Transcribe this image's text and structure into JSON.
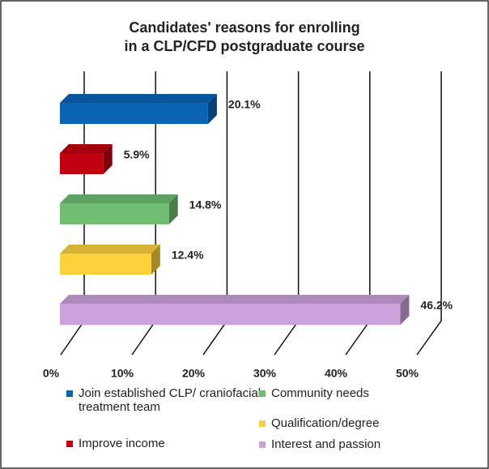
{
  "chart_data": {
    "type": "bar3d",
    "title": [
      "Candidates' reasons for enrolling",
      "in a CLP/CFD postgraduate course"
    ],
    "categories": [
      "Join established CLP/ craniofacial treatment team",
      "Improve income",
      "Community needs",
      "Qualification/degree",
      "Interest and passion"
    ],
    "values": [
      20.1,
      5.9,
      14.8,
      12.4,
      46.2
    ],
    "value_labels": [
      "20.1%",
      "5.9%",
      "14.8%",
      "12.4%",
      "46.2%"
    ],
    "colors": [
      "#0a64b4",
      "#c0000e",
      "#70bd73",
      "#fdd13e",
      "#cda1dc"
    ],
    "xlim": [
      0,
      50
    ],
    "xticks": [
      {
        "value": 0,
        "label": "0%"
      },
      {
        "value": 10,
        "label": "10%"
      },
      {
        "value": 20,
        "label": "20%"
      },
      {
        "value": 30,
        "label": "30%"
      },
      {
        "value": 40,
        "label": "40%"
      },
      {
        "value": 50,
        "label": "50%"
      }
    ],
    "grid": true
  }
}
